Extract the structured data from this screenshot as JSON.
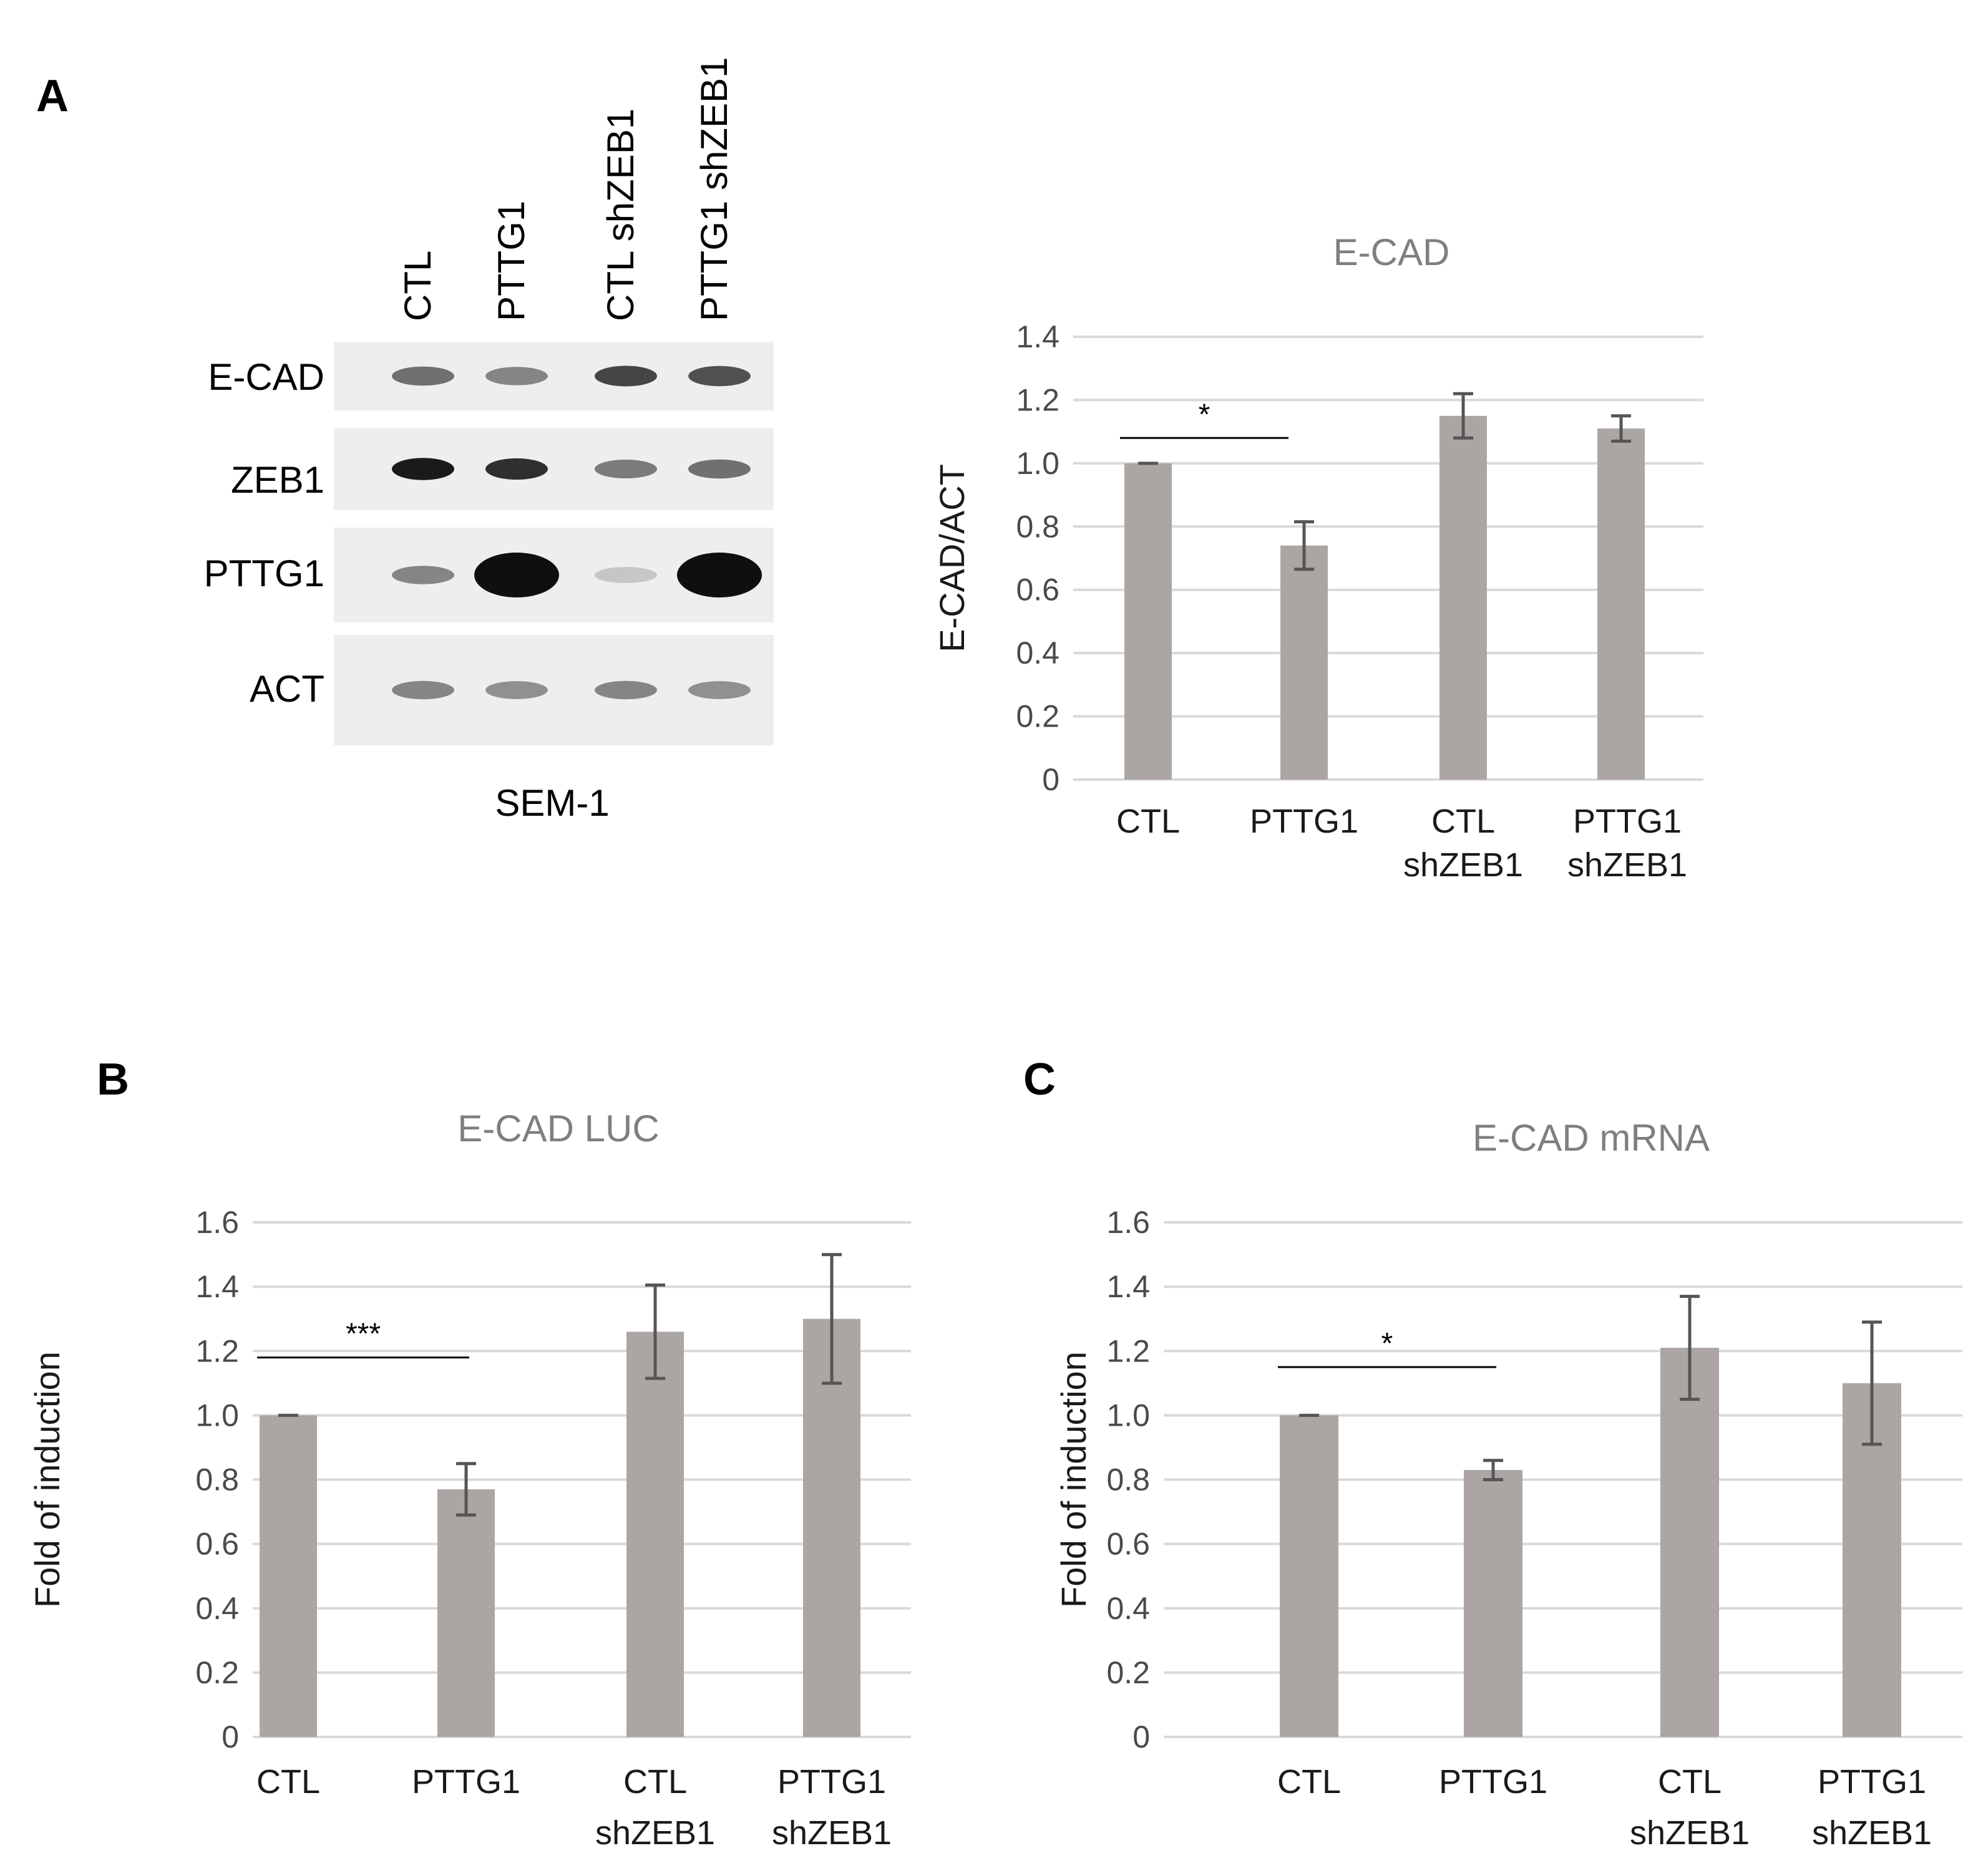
{
  "panels": [
    {
      "id": "A",
      "letter": "A"
    },
    {
      "id": "B",
      "letter": "B"
    },
    {
      "id": "C",
      "letter": "C"
    }
  ],
  "western_blot": {
    "lanes": [
      "CTL",
      "PTTG1",
      "CTL shZEB1",
      "PTTG1 shZEB1"
    ],
    "rows": [
      {
        "label": "E-CAD",
        "intensity": [
          0.55,
          0.45,
          0.75,
          0.7
        ],
        "size": "normal"
      },
      {
        "label": "ZEB1",
        "intensity": [
          0.95,
          0.85,
          0.5,
          0.55
        ],
        "size": "normal"
      },
      {
        "label": "PTTG1",
        "intensity": [
          0.45,
          1.0,
          0.15,
          1.0
        ],
        "size": "large"
      },
      {
        "label": "ACT",
        "intensity": [
          0.45,
          0.4,
          0.45,
          0.4
        ],
        "size": "normal"
      }
    ],
    "cell_line": "SEM-1"
  },
  "chart_data": [
    {
      "panel": "A",
      "type": "bar",
      "title": "E-CAD",
      "ylabel": "E-CAD/ACT",
      "xlabel": "",
      "categories": [
        [
          "CTL"
        ],
        [
          "PTTG1"
        ],
        [
          "CTL",
          "shZEB1"
        ],
        [
          "PTTG1",
          "shZEB1"
        ]
      ],
      "values": [
        1.0,
        0.74,
        1.15,
        1.11
      ],
      "errors": [
        0.0,
        0.075,
        0.07,
        0.04
      ],
      "ylim": [
        0,
        1.4
      ],
      "yticks": [
        "0",
        "0.2",
        "0.4",
        "0.6",
        "0.8",
        "1.0",
        "1.2",
        "1.4"
      ],
      "grid": true,
      "significance": {
        "from": 0,
        "to": 1,
        "label": "*",
        "y": 1.08
      }
    },
    {
      "panel": "B",
      "type": "bar",
      "title": "E-CAD LUC",
      "ylabel": "Fold of induction",
      "xlabel": "",
      "categories": [
        [
          "CTL"
        ],
        [
          "PTTG1"
        ],
        [
          "CTL",
          "shZEB1"
        ],
        [
          "PTTG1",
          "shZEB1"
        ]
      ],
      "values": [
        1.0,
        0.77,
        1.26,
        1.3
      ],
      "errors": [
        0.0,
        0.08,
        0.145,
        0.2
      ],
      "ylim": [
        0,
        1.6
      ],
      "yticks": [
        "0",
        "0.2",
        "0.4",
        "0.6",
        "0.8",
        "1.0",
        "1.2",
        "1.4",
        "1.6"
      ],
      "grid": true,
      "significance": {
        "from": 0,
        "to": 1,
        "label": "***",
        "y": 1.18
      }
    },
    {
      "panel": "C",
      "type": "bar",
      "title": "E-CAD mRNA",
      "ylabel": "Fold of induction",
      "xlabel": "",
      "categories": [
        [
          "CTL"
        ],
        [
          "PTTG1"
        ],
        [
          "CTL",
          "shZEB1"
        ],
        [
          "PTTG1",
          "shZEB1"
        ]
      ],
      "values": [
        1.0,
        0.83,
        1.21,
        1.1
      ],
      "errors": [
        0.0,
        0.03,
        0.16,
        0.19
      ],
      "ylim": [
        0,
        1.6
      ],
      "yticks": [
        "0",
        "0.2",
        "0.4",
        "0.6",
        "0.8",
        "1.0",
        "1.2",
        "1.4",
        "1.6"
      ],
      "grid": true,
      "significance": {
        "from": 0,
        "to": 1,
        "label": "*",
        "y": 1.15
      }
    }
  ]
}
